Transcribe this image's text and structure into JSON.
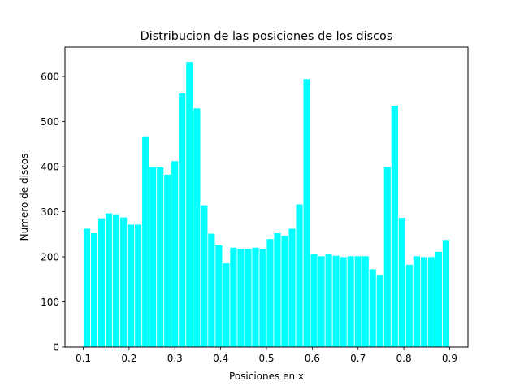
{
  "chart_data": {
    "type": "bar",
    "title": "Distribucion de las posiciones de los discos",
    "xlabel": "Posiciones en x",
    "ylabel": "Numero de discos",
    "xlim": [
      0.06,
      0.94
    ],
    "ylim": [
      0,
      665
    ],
    "xticks": [
      0.1,
      0.2,
      0.3,
      0.4,
      0.5,
      0.6,
      0.7,
      0.8,
      0.9
    ],
    "xtick_labels": [
      "0.1",
      "0.2",
      "0.3",
      "0.4",
      "0.5",
      "0.6",
      "0.7",
      "0.8",
      "0.9"
    ],
    "yticks": [
      0,
      100,
      200,
      300,
      400,
      500,
      600
    ],
    "ytick_labels": [
      "0",
      "100",
      "200",
      "300",
      "400",
      "500",
      "600"
    ],
    "bin_start": 0.1,
    "bin_end": 0.9,
    "bar_color": "#00ffff",
    "bar_edge_color": "#ffffff",
    "grid": false,
    "values": [
      263,
      253,
      286,
      297,
      295,
      288,
      272,
      272,
      468,
      401,
      399,
      383,
      413,
      563,
      633,
      530,
      315,
      252,
      226,
      186,
      221,
      218,
      218,
      221,
      218,
      240,
      253,
      247,
      263,
      317,
      595,
      207,
      202,
      207,
      203,
      200,
      202,
      202,
      202,
      173,
      159,
      400,
      536,
      287,
      183,
      202,
      200,
      200,
      212,
      238
    ]
  }
}
